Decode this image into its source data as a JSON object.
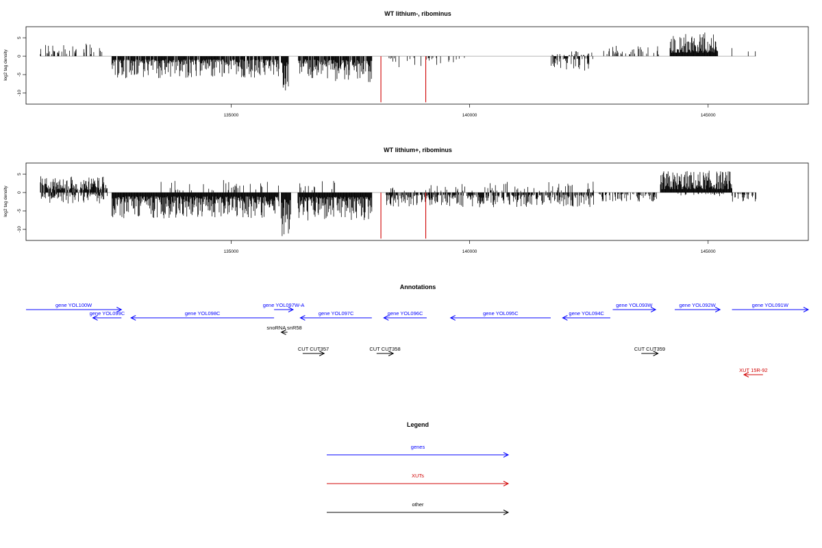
{
  "chart_data": [
    {
      "type": "bar",
      "title": "WT lithium-, ribominus",
      "ylabel": "log2 tag density",
      "xlim": [
        130700,
        147100
      ],
      "ylim": [
        -13,
        8
      ],
      "xticks": [
        135000,
        140000,
        145000
      ],
      "yticks": [
        5,
        0,
        -5,
        -10
      ],
      "signal_segments": [
        {
          "start": 131000,
          "end": 132300,
          "min": 0,
          "max": 3.5,
          "density": 0.35
        },
        {
          "start": 132500,
          "end": 136000,
          "min": -6,
          "max": 0,
          "density": 0.9
        },
        {
          "start": 136050,
          "end": 136200,
          "min": -11,
          "max": -3,
          "density": 1.0
        },
        {
          "start": 136400,
          "end": 137000,
          "min": -6,
          "max": 0,
          "density": 0.9
        },
        {
          "start": 137000,
          "end": 137950,
          "min": -7,
          "max": 0,
          "density": 0.9
        },
        {
          "start": 138300,
          "end": 140000,
          "min": -3,
          "max": 0,
          "density": 0.15
        },
        {
          "start": 141700,
          "end": 142600,
          "min": -4,
          "max": 0,
          "density": 0.5
        },
        {
          "start": 141700,
          "end": 142600,
          "min": 0,
          "max": 1.5,
          "density": 0.15
        },
        {
          "start": 142800,
          "end": 144000,
          "min": 0,
          "max": 3,
          "density": 0.25
        },
        {
          "start": 144200,
          "end": 145200,
          "min": 0,
          "max": 6.5,
          "density": 1.0
        },
        {
          "start": 145300,
          "end": 146000,
          "min": 0,
          "max": 3,
          "density": 0.05
        }
      ],
      "highlight_values": [
        {
          "x": 138140,
          "y": -12.5,
          "color": "#d00000"
        },
        {
          "x": 139080,
          "y": -12.5,
          "color": "#d00000"
        }
      ]
    },
    {
      "type": "bar",
      "title": "WT lithium+, ribominus",
      "ylabel": "log2 tag density",
      "xlim": [
        130700,
        147100
      ],
      "ylim": [
        -13,
        8
      ],
      "xticks": [
        135000,
        140000,
        145000
      ],
      "yticks": [
        5,
        0,
        -5,
        -10
      ],
      "signal_segments": [
        {
          "start": 131000,
          "end": 132400,
          "min": 0,
          "max": 4.5,
          "density": 0.8
        },
        {
          "start": 131000,
          "end": 132400,
          "min": -3,
          "max": 0,
          "density": 0.5
        },
        {
          "start": 132500,
          "end": 136000,
          "min": -7,
          "max": 0,
          "density": 1.0
        },
        {
          "start": 133500,
          "end": 136000,
          "min": 0,
          "max": 3.5,
          "density": 0.15
        },
        {
          "start": 136050,
          "end": 136250,
          "min": -12,
          "max": -3,
          "density": 1.0
        },
        {
          "start": 136400,
          "end": 137950,
          "min": -8,
          "max": 0,
          "density": 1.0
        },
        {
          "start": 136400,
          "end": 137200,
          "min": 0,
          "max": 3.5,
          "density": 0.2
        },
        {
          "start": 138250,
          "end": 142600,
          "min": -4,
          "max": 0,
          "density": 0.7
        },
        {
          "start": 138250,
          "end": 142600,
          "min": 0,
          "max": 3,
          "density": 0.12
        },
        {
          "start": 142700,
          "end": 144000,
          "min": -2.5,
          "max": 3,
          "density": 0.5
        },
        {
          "start": 144000,
          "end": 145500,
          "min": 0,
          "max": 6,
          "density": 1.0
        },
        {
          "start": 144200,
          "end": 145500,
          "min": -1,
          "max": 0,
          "density": 0.2
        },
        {
          "start": 145500,
          "end": 146000,
          "min": -2.5,
          "max": 2.5,
          "density": 0.5
        }
      ],
      "highlight_values": [
        {
          "x": 138140,
          "y": -12.5,
          "color": "#d00000"
        },
        {
          "x": 139080,
          "y": -12.5,
          "color": "#d00000"
        }
      ]
    }
  ],
  "annotations": {
    "title": "Annotations",
    "colors": {
      "gene": "#0000ff",
      "xut": "#d00000",
      "other": "#000000"
    },
    "features": [
      {
        "label": "gene YOL100W",
        "start": 130700,
        "end": 132700,
        "strand": "+",
        "type": "gene",
        "row": 0
      },
      {
        "label": "gene YOL099C",
        "start": 132100,
        "end": 132700,
        "strand": "-",
        "type": "gene",
        "row": 1
      },
      {
        "label": "gene YOL098C",
        "start": 132900,
        "end": 135900,
        "strand": "-",
        "type": "gene",
        "row": 1
      },
      {
        "label": "gene YOL097W-A",
        "start": 135900,
        "end": 136300,
        "strand": "+",
        "type": "gene",
        "row": 0
      },
      {
        "label": "gene YOL097C",
        "start": 136450,
        "end": 137950,
        "strand": "-",
        "type": "gene",
        "row": 1
      },
      {
        "label": "gene YOL096C",
        "start": 138200,
        "end": 139100,
        "strand": "-",
        "type": "gene",
        "row": 1
      },
      {
        "label": "gene YOL095C",
        "start": 139600,
        "end": 141700,
        "strand": "-",
        "type": "gene",
        "row": 1
      },
      {
        "label": "gene YOL094C",
        "start": 141950,
        "end": 142950,
        "strand": "-",
        "type": "gene",
        "row": 1
      },
      {
        "label": "gene YOL093W",
        "start": 143000,
        "end": 143900,
        "strand": "+",
        "type": "gene",
        "row": 0
      },
      {
        "label": "gene YOL092W",
        "start": 144300,
        "end": 145250,
        "strand": "+",
        "type": "gene",
        "row": 0
      },
      {
        "label": "gene YOL091W",
        "start": 145500,
        "end": 147100,
        "strand": "+",
        "type": "gene",
        "row": 0
      },
      {
        "label": "snoRNA snR58",
        "start": 136050,
        "end": 136180,
        "strand": "-",
        "type": "other",
        "row": 2
      },
      {
        "label": "CUT CUT357",
        "start": 136500,
        "end": 136950,
        "strand": "+",
        "type": "other",
        "row": 3
      },
      {
        "label": "CUT CUT358",
        "start": 138050,
        "end": 138400,
        "strand": "+",
        "type": "other",
        "row": 3
      },
      {
        "label": "CUT CUT359",
        "start": 143600,
        "end": 143950,
        "strand": "+",
        "type": "other",
        "row": 3
      },
      {
        "label": "XUT 15R-92",
        "start": 145750,
        "end": 146150,
        "strand": "-",
        "type": "xut",
        "row": 4
      }
    ]
  },
  "legend": {
    "title": "Legend",
    "entries": [
      {
        "label": "genes",
        "color": "#0000ff"
      },
      {
        "label": "XUTs",
        "color": "#d00000"
      },
      {
        "label": "other",
        "color": "#000000"
      }
    ]
  }
}
